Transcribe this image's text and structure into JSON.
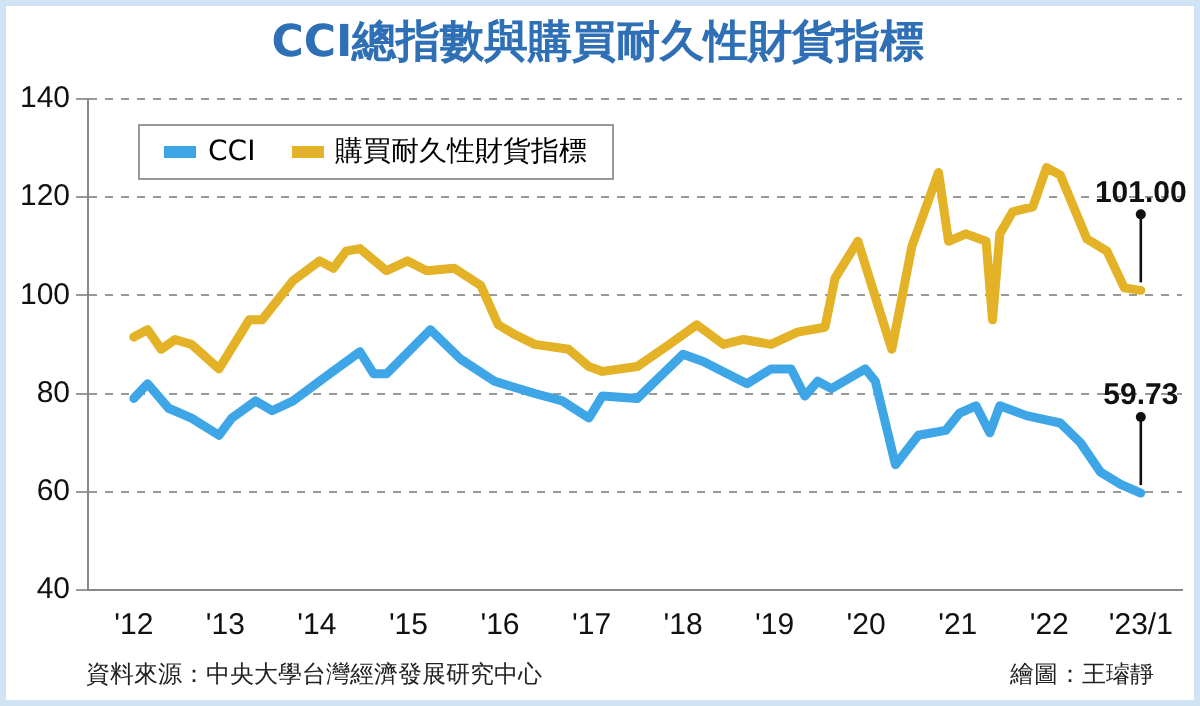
{
  "chart_data": {
    "type": "line",
    "title": "CCI總指數與購買耐久性財貨指標",
    "xlim": [
      2011.5,
      2023.45
    ],
    "xticks": [
      {
        "value": 2012,
        "label": "'12"
      },
      {
        "value": 2013,
        "label": "'13"
      },
      {
        "value": 2014,
        "label": "'14"
      },
      {
        "value": 2015,
        "label": "'15"
      },
      {
        "value": 2016,
        "label": "'16"
      },
      {
        "value": 2017,
        "label": "'17"
      },
      {
        "value": 2018,
        "label": "'18"
      },
      {
        "value": 2019,
        "label": "'19"
      },
      {
        "value": 2020,
        "label": "'20"
      },
      {
        "value": 2021,
        "label": "'21"
      },
      {
        "value": 2022,
        "label": "'22"
      },
      {
        "value": 2023,
        "label": "'23/1"
      }
    ],
    "ylim": [
      40,
      140
    ],
    "yticks": [
      40,
      60,
      80,
      100,
      120,
      140
    ],
    "grid": "y",
    "legend": "top left",
    "marker": "none",
    "line_style": "solid",
    "series": [
      {
        "name": "CCI",
        "color": "#3ea6e6",
        "x": [
          2012.0,
          2012.15,
          2012.38,
          2012.63,
          2012.93,
          2013.07,
          2013.33,
          2013.51,
          2013.74,
          2014.1,
          2014.47,
          2014.62,
          2014.76,
          2015.24,
          2015.57,
          2015.94,
          2016.38,
          2016.68,
          2016.97,
          2017.12,
          2017.5,
          2018.0,
          2018.22,
          2018.59,
          2018.7,
          2018.96,
          2019.18,
          2019.33,
          2019.47,
          2019.62,
          2019.99,
          2020.1,
          2020.32,
          2020.57,
          2020.87,
          2021.02,
          2021.2,
          2021.35,
          2021.46,
          2021.75,
          2022.12,
          2022.34,
          2022.56,
          2022.78,
          2023.0
        ],
        "values": [
          79,
          82,
          77,
          75,
          71.5,
          75,
          78.5,
          76.5,
          78.5,
          83.5,
          88.5,
          84,
          84,
          93,
          87,
          82.5,
          80,
          78.5,
          75,
          79.5,
          79,
          88,
          86.5,
          83,
          82,
          85,
          85,
          79.5,
          82.5,
          81,
          85,
          82.5,
          65.5,
          71.5,
          72.5,
          76,
          77.5,
          72,
          77.5,
          75.5,
          74,
          70,
          64,
          61.5,
          59.73
        ]
      },
      {
        "name": "購買耐久性財貨指標",
        "color": "#e3b226",
        "x": [
          2012.0,
          2012.15,
          2012.3,
          2012.45,
          2012.63,
          2012.93,
          2013.26,
          2013.4,
          2013.74,
          2014.03,
          2014.18,
          2014.32,
          2014.47,
          2014.76,
          2014.99,
          2015.2,
          2015.5,
          2015.79,
          2015.98,
          2016.16,
          2016.38,
          2016.75,
          2016.97,
          2017.12,
          2017.5,
          2017.85,
          2018.15,
          2018.44,
          2018.66,
          2018.96,
          2019.25,
          2019.55,
          2019.66,
          2019.91,
          2020.06,
          2020.28,
          2020.5,
          2020.79,
          2020.9,
          2021.09,
          2021.31,
          2021.38,
          2021.46,
          2021.6,
          2021.82,
          2021.97,
          2022.12,
          2022.41,
          2022.63,
          2022.82,
          2023.0
        ],
        "values": [
          91.5,
          93,
          89,
          91,
          90,
          85,
          95,
          95,
          103,
          107,
          105.5,
          109,
          109.5,
          105,
          107,
          105,
          105.5,
          102,
          94,
          92,
          90,
          89,
          85.5,
          84.5,
          85.5,
          90,
          94,
          90,
          91,
          90,
          92.5,
          93.5,
          103.5,
          111,
          102,
          89,
          110,
          125,
          111,
          112.5,
          111,
          95,
          112.5,
          117,
          118,
          126,
          124.5,
          111.5,
          109,
          101.5,
          101.0
        ]
      }
    ],
    "annotations": [
      {
        "text": "101.00",
        "x": 2023,
        "y": 101.0
      },
      {
        "text": "59.73",
        "x": 2023,
        "y": 59.73
      },
      "資料來源：中央大學台灣經濟發展研究中心",
      "繪圖：王璿靜"
    ]
  }
}
